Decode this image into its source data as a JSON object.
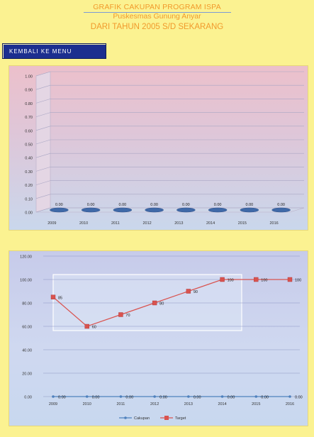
{
  "header": {
    "title": "GRAFIK CAKUPAN PROGRAM ISPA",
    "subtitle": "Puskesmas Gunung Anyar",
    "period": "DARI TAHUN 2005 S/D SEKARANG"
  },
  "back_button": {
    "label": "KEMBALI KE MENU"
  },
  "colors": {
    "page_bg": "#fbf291",
    "header_text": "#f19a2c",
    "button_bg": "#1c2f8f",
    "bar": "#3f69a8",
    "series_cakupan": "#4f81bd",
    "series_target": "#d9534f"
  },
  "chart_data": [
    {
      "type": "bar",
      "categories": [
        "2009",
        "2010",
        "2011",
        "2012",
        "2013",
        "2014",
        "2015",
        "2016"
      ],
      "values": [
        0,
        0,
        0,
        0,
        0,
        0,
        0,
        0
      ],
      "value_labels": [
        "0.00",
        "0.00",
        "0.00",
        "0.00",
        "0.00",
        "0.00",
        "0.00",
        "0.00"
      ],
      "ylim": [
        0,
        1
      ],
      "yticks": [
        "0.00",
        "0.10",
        "0.20",
        "0.30",
        "0.40",
        "0.50",
        "0.60",
        "0.70",
        "0.80",
        "0.90",
        "1.00"
      ],
      "grid": true,
      "three_d": true
    },
    {
      "type": "line",
      "categories": [
        "2009",
        "2010",
        "2011",
        "2012",
        "2013",
        "2014",
        "2015",
        "2016"
      ],
      "ylim": [
        0,
        120
      ],
      "yticks": [
        "0.00",
        "20.00",
        "40.00",
        "60.00",
        "80.00",
        "100.00",
        "120.00"
      ],
      "grid": true,
      "legend_position": "bottom",
      "series": [
        {
          "name": "Cakupan",
          "values": [
            0,
            0,
            0,
            0,
            0,
            0,
            0,
            0
          ],
          "labels": [
            "0.00",
            "0.00",
            "0.00",
            "0.00",
            "0.00",
            "0.00",
            "0.00",
            "0.00"
          ],
          "color": "#4f81bd"
        },
        {
          "name": "Target",
          "values": [
            85,
            60,
            70,
            80,
            90,
            100,
            100,
            100
          ],
          "labels": [
            "85",
            "60",
            "70",
            "80",
            "90",
            "100",
            "100",
            "100"
          ],
          "color": "#d9534f"
        }
      ]
    }
  ]
}
